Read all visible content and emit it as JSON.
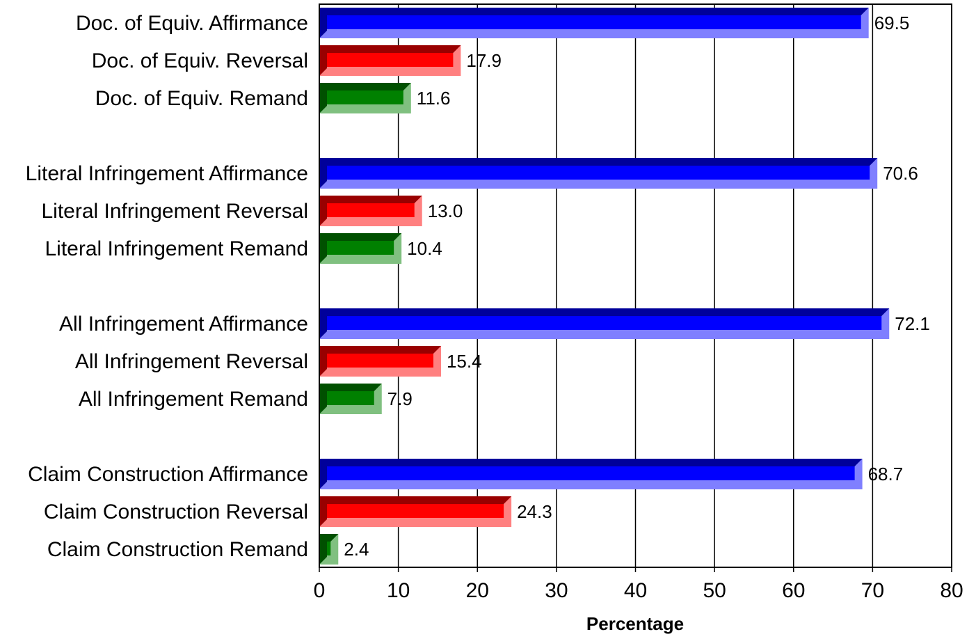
{
  "chart_data": {
    "type": "bar",
    "orientation": "horizontal",
    "title": "",
    "xlabel": "Percentage",
    "ylabel": "",
    "xlim": [
      0,
      80
    ],
    "x_ticks": [
      "0",
      "10",
      "20",
      "30",
      "40",
      "50",
      "60",
      "70",
      "80"
    ],
    "grid": "vertical lines at each x tick",
    "groups": [
      {
        "bars": [
          {
            "category": "Doc. of Equiv. Affirmance",
            "value": 69.5,
            "label": "69.5",
            "kind": "affirmance"
          },
          {
            "category": "Doc. of Equiv. Reversal",
            "value": 17.9,
            "label": "17.9",
            "kind": "reversal"
          },
          {
            "category": "Doc. of Equiv. Remand",
            "value": 11.6,
            "label": "11.6",
            "kind": "remand"
          }
        ]
      },
      {
        "bars": [
          {
            "category": "Literal Infringement Affirmance",
            "value": 70.6,
            "label": "70.6",
            "kind": "affirmance"
          },
          {
            "category": "Literal Infringement Reversal",
            "value": 13.0,
            "label": "13.0",
            "kind": "reversal"
          },
          {
            "category": "Literal Infringement Remand",
            "value": 10.4,
            "label": "10.4",
            "kind": "remand"
          }
        ]
      },
      {
        "bars": [
          {
            "category": "All Infringement Affirmance",
            "value": 72.1,
            "label": "72.1",
            "kind": "affirmance"
          },
          {
            "category": "All Infringement Reversal",
            "value": 15.4,
            "label": "15.4",
            "kind": "reversal"
          },
          {
            "category": "All Infringement Remand",
            "value": 7.9,
            "label": "7.9",
            "kind": "remand"
          }
        ]
      },
      {
        "bars": [
          {
            "category": "Claim Construction Affirmance",
            "value": 68.7,
            "label": "68.7",
            "kind": "affirmance"
          },
          {
            "category": "Claim Construction Reversal",
            "value": 24.3,
            "label": "24.3",
            "kind": "reversal"
          },
          {
            "category": "Claim Construction Remand",
            "value": 2.4,
            "label": "2.4",
            "kind": "remand"
          }
        ]
      }
    ],
    "colors": {
      "affirmance": {
        "main": "#0000ff",
        "dark": "#00009a",
        "light": "#7f7fff"
      },
      "reversal": {
        "main": "#ff0000",
        "dark": "#990000",
        "light": "#ff8080"
      },
      "remand": {
        "main": "#008000",
        "dark": "#005000",
        "light": "#80c080"
      }
    }
  }
}
